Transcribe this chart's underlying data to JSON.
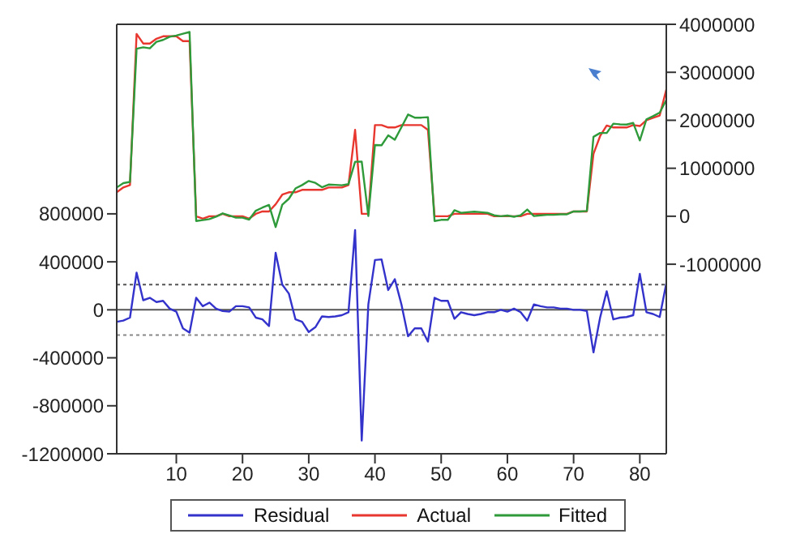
{
  "chart_data": {
    "type": "line",
    "x": [
      1,
      2,
      3,
      4,
      5,
      6,
      7,
      8,
      9,
      10,
      11,
      12,
      13,
      14,
      15,
      16,
      17,
      18,
      19,
      20,
      21,
      22,
      23,
      24,
      25,
      26,
      27,
      28,
      29,
      30,
      31,
      32,
      33,
      34,
      35,
      36,
      37,
      38,
      39,
      40,
      41,
      42,
      43,
      44,
      45,
      46,
      47,
      48,
      49,
      50,
      51,
      52,
      53,
      54,
      55,
      56,
      57,
      58,
      59,
      60,
      61,
      62,
      63,
      64,
      65,
      66,
      67,
      68,
      69,
      70,
      71,
      72,
      73,
      74,
      75,
      76,
      77,
      78,
      79,
      80,
      81,
      82,
      83,
      84
    ],
    "series": [
      {
        "name": "Residual",
        "color": "#3333cc",
        "values": [
          -100000,
          -90000,
          -65000,
          310000,
          80000,
          100000,
          65000,
          75000,
          10000,
          -15000,
          -155000,
          -190000,
          100000,
          30000,
          60000,
          10000,
          -10000,
          -15000,
          30000,
          30000,
          20000,
          -65000,
          -80000,
          -135000,
          475000,
          210000,
          135000,
          -80000,
          -100000,
          -185000,
          -145000,
          -55000,
          -60000,
          -55000,
          -45000,
          -20000,
          665000,
          -1090000,
          45000,
          415000,
          420000,
          165000,
          255000,
          45000,
          -220000,
          -155000,
          -155000,
          -265000,
          100000,
          75000,
          75000,
          -75000,
          -20000,
          -35000,
          -45000,
          -35000,
          -20000,
          -20000,
          0,
          -15000,
          10000,
          -20000,
          -90000,
          45000,
          30000,
          20000,
          20000,
          10000,
          10000,
          0,
          0,
          -10000,
          -355000,
          -65000,
          155000,
          -80000,
          -65000,
          -60000,
          -45000,
          300000,
          -20000,
          -35000,
          -60000,
          220000
        ]
      },
      {
        "name": "Actual",
        "color": "#e8372f",
        "axis": "y2",
        "values": [
          500000,
          600000,
          650000,
          3800000,
          3600000,
          3600000,
          3700000,
          3750000,
          3750000,
          3750000,
          3650000,
          3650000,
          0,
          -50000,
          0,
          0,
          50000,
          0,
          0,
          0,
          -50000,
          50000,
          100000,
          100000,
          250000,
          450000,
          500000,
          500000,
          550000,
          550000,
          550000,
          550000,
          600000,
          600000,
          600000,
          650000,
          1800000,
          50000,
          50000,
          1900000,
          1900000,
          1850000,
          1850000,
          1900000,
          1900000,
          1900000,
          1900000,
          1800000,
          0,
          0,
          0,
          50000,
          50000,
          50000,
          50000,
          50000,
          50000,
          0,
          0,
          0,
          0,
          0,
          50000,
          50000,
          50000,
          50000,
          50000,
          50000,
          50000,
          100000,
          100000,
          100000,
          1300000,
          1670000,
          1890000,
          1850000,
          1850000,
          1850000,
          1900000,
          1880000,
          2000000,
          2050000,
          2100000,
          2640000
        ]
      },
      {
        "name": "Fitted",
        "color": "#2e9a3a",
        "axis": "y2",
        "values": [
          600000,
          690000,
          715000,
          3490000,
          3520000,
          3500000,
          3635000,
          3675000,
          3740000,
          3765000,
          3805000,
          3840000,
          -100000,
          -80000,
          -60000,
          -10000,
          60000,
          15000,
          -30000,
          -30000,
          -70000,
          115000,
          180000,
          235000,
          -225000,
          240000,
          365000,
          580000,
          650000,
          735000,
          695000,
          605000,
          660000,
          655000,
          645000,
          670000,
          1135000,
          1140000,
          5000,
          1485000,
          1480000,
          1685000,
          1595000,
          1855000,
          2120000,
          2055000,
          2055000,
          2065000,
          -100000,
          -75000,
          -75000,
          125000,
          70000,
          85000,
          95000,
          85000,
          70000,
          20000,
          0,
          15000,
          -10000,
          20000,
          140000,
          5000,
          20000,
          30000,
          30000,
          40000,
          40000,
          100000,
          100000,
          110000,
          1655000,
          1735000,
          1735000,
          1930000,
          1915000,
          1910000,
          1945000,
          1580000,
          2020000,
          2085000,
          2160000,
          2420000
        ]
      }
    ],
    "xlim": [
      1,
      84
    ],
    "xticks": [
      10,
      20,
      30,
      40,
      50,
      60,
      70,
      80
    ],
    "ylim": [
      -1200000,
      2380000
    ],
    "yticks": [
      -1200000,
      -800000,
      -400000,
      0,
      400000,
      800000
    ],
    "y2lim": [
      -4950000,
      4000000
    ],
    "y2ticks": [
      -1000000,
      0,
      1000000,
      2000000,
      3000000,
      4000000
    ],
    "ref_lines": [
      {
        "axis": "y",
        "value": 0,
        "color": "#555555",
        "line_style": "solid"
      },
      {
        "axis": "y",
        "value": 210000,
        "color": "#555555",
        "line_style": "dotted"
      },
      {
        "axis": "y",
        "value": -210000,
        "color": "#888888",
        "line_style": "dotted"
      }
    ],
    "legend": "bottom",
    "marker": "none",
    "line_style": "solid"
  }
}
